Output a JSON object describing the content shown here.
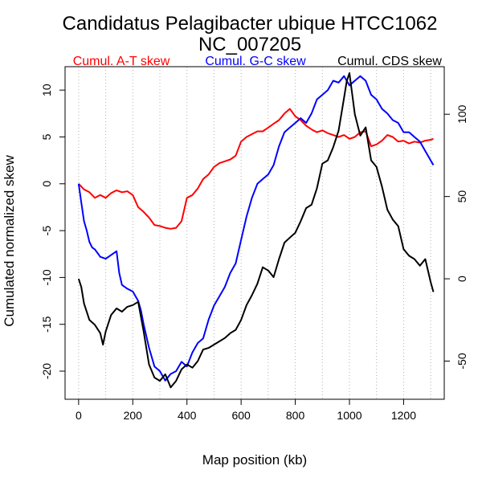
{
  "chart_data": {
    "type": "line",
    "title": "Candidatus Pelagibacter ubique HTCC1062",
    "subtitle": "NC_007205",
    "xlabel": "Map position (kb)",
    "ylabel": "Cumulated normalized skew",
    "xlim": [
      -50,
      1350
    ],
    "ylim": [
      -23,
      12.5
    ],
    "y2lim": [
      -73.2,
      128.9
    ],
    "x_ticks": [
      0,
      200,
      400,
      600,
      800,
      1000,
      1200
    ],
    "y_ticks": [
      10,
      5,
      0,
      -5,
      -10,
      -15,
      -20
    ],
    "y2_ticks": [
      100,
      50,
      0,
      -50
    ],
    "x_gridlines": [
      0,
      100,
      200,
      300,
      400,
      500,
      600,
      700,
      800,
      900,
      1000,
      1100,
      1200,
      1300
    ],
    "grid": "vertical dotted",
    "legend_position": "top",
    "series": [
      {
        "name": "Cumul. A-T skew",
        "color": "#ff0000",
        "axis": "left",
        "points": [
          [
            0,
            0
          ],
          [
            20,
            -0.6
          ],
          [
            40,
            -0.9
          ],
          [
            60,
            -1.5
          ],
          [
            80,
            -1.2
          ],
          [
            100,
            -1.5
          ],
          [
            120,
            -1.0
          ],
          [
            140,
            -0.7
          ],
          [
            160,
            -0.9
          ],
          [
            180,
            -0.8
          ],
          [
            200,
            -1.2
          ],
          [
            220,
            -2.5
          ],
          [
            240,
            -3.0
          ],
          [
            260,
            -3.6
          ],
          [
            280,
            -4.4
          ],
          [
            300,
            -4.5
          ],
          [
            320,
            -4.7
          ],
          [
            340,
            -4.8
          ],
          [
            360,
            -4.7
          ],
          [
            380,
            -4.0
          ],
          [
            400,
            -1.5
          ],
          [
            420,
            -1.2
          ],
          [
            440,
            -0.5
          ],
          [
            460,
            0.5
          ],
          [
            480,
            1.0
          ],
          [
            500,
            1.8
          ],
          [
            520,
            2.2
          ],
          [
            540,
            2.4
          ],
          [
            560,
            2.6
          ],
          [
            580,
            3.0
          ],
          [
            600,
            4.5
          ],
          [
            620,
            5.0
          ],
          [
            640,
            5.3
          ],
          [
            660,
            5.6
          ],
          [
            680,
            5.6
          ],
          [
            700,
            6.0
          ],
          [
            720,
            6.4
          ],
          [
            740,
            6.8
          ],
          [
            760,
            7.5
          ],
          [
            780,
            8.0
          ],
          [
            800,
            7.2
          ],
          [
            820,
            6.8
          ],
          [
            840,
            6.2
          ],
          [
            860,
            5.8
          ],
          [
            880,
            5.5
          ],
          [
            900,
            5.7
          ],
          [
            920,
            5.4
          ],
          [
            940,
            5.2
          ],
          [
            960,
            5.0
          ],
          [
            980,
            5.2
          ],
          [
            1000,
            4.8
          ],
          [
            1020,
            5.0
          ],
          [
            1040,
            5.5
          ],
          [
            1060,
            5.6
          ],
          [
            1080,
            4.0
          ],
          [
            1100,
            4.2
          ],
          [
            1120,
            4.6
          ],
          [
            1140,
            5.2
          ],
          [
            1160,
            5.0
          ],
          [
            1180,
            4.5
          ],
          [
            1200,
            4.6
          ],
          [
            1220,
            4.3
          ],
          [
            1240,
            4.5
          ],
          [
            1260,
            4.4
          ],
          [
            1280,
            4.6
          ],
          [
            1300,
            4.7
          ],
          [
            1310,
            4.8
          ]
        ]
      },
      {
        "name": "Cumul. G-C skew",
        "color": "#0000ff",
        "axis": "left",
        "points": [
          [
            0,
            0
          ],
          [
            10,
            -2.0
          ],
          [
            20,
            -4.0
          ],
          [
            30,
            -5.0
          ],
          [
            40,
            -6.2
          ],
          [
            50,
            -6.8
          ],
          [
            60,
            -7.0
          ],
          [
            70,
            -7.4
          ],
          [
            80,
            -7.8
          ],
          [
            100,
            -8.0
          ],
          [
            120,
            -7.6
          ],
          [
            140,
            -7.2
          ],
          [
            150,
            -9.5
          ],
          [
            160,
            -10.8
          ],
          [
            180,
            -11.2
          ],
          [
            200,
            -11.5
          ],
          [
            220,
            -12.5
          ],
          [
            230,
            -13.5
          ],
          [
            240,
            -15.0
          ],
          [
            260,
            -17.5
          ],
          [
            280,
            -19.5
          ],
          [
            300,
            -20.0
          ],
          [
            320,
            -21.0
          ],
          [
            340,
            -20.3
          ],
          [
            360,
            -20.0
          ],
          [
            380,
            -19.0
          ],
          [
            400,
            -19.5
          ],
          [
            420,
            -18.0
          ],
          [
            440,
            -17.0
          ],
          [
            460,
            -16.5
          ],
          [
            480,
            -14.5
          ],
          [
            500,
            -13.0
          ],
          [
            520,
            -12.0
          ],
          [
            540,
            -11.0
          ],
          [
            560,
            -9.5
          ],
          [
            580,
            -8.5
          ],
          [
            600,
            -6.0
          ],
          [
            620,
            -3.5
          ],
          [
            640,
            -1.5
          ],
          [
            660,
            0.0
          ],
          [
            680,
            0.5
          ],
          [
            700,
            1.0
          ],
          [
            720,
            2.0
          ],
          [
            740,
            4.0
          ],
          [
            760,
            5.5
          ],
          [
            780,
            6.0
          ],
          [
            800,
            6.5
          ],
          [
            820,
            7.0
          ],
          [
            840,
            6.5
          ],
          [
            860,
            7.5
          ],
          [
            880,
            9.0
          ],
          [
            900,
            9.5
          ],
          [
            920,
            10.0
          ],
          [
            940,
            11.0
          ],
          [
            960,
            10.8
          ],
          [
            980,
            11.5
          ],
          [
            1000,
            10.5
          ],
          [
            1020,
            11.0
          ],
          [
            1040,
            11.5
          ],
          [
            1060,
            11.0
          ],
          [
            1080,
            9.5
          ],
          [
            1100,
            9.0
          ],
          [
            1120,
            8.0
          ],
          [
            1140,
            7.5
          ],
          [
            1160,
            6.8
          ],
          [
            1180,
            6.5
          ],
          [
            1200,
            5.5
          ],
          [
            1220,
            5.5
          ],
          [
            1240,
            5.0
          ],
          [
            1260,
            4.5
          ],
          [
            1280,
            3.5
          ],
          [
            1300,
            2.5
          ],
          [
            1310,
            2.0
          ]
        ]
      },
      {
        "name": "Cumul. CDS skew",
        "color": "#000000",
        "axis": "right",
        "points": [
          [
            0,
            0
          ],
          [
            10,
            -5
          ],
          [
            20,
            -15
          ],
          [
            40,
            -25
          ],
          [
            60,
            -28
          ],
          [
            80,
            -33
          ],
          [
            90,
            -40
          ],
          [
            100,
            -32
          ],
          [
            120,
            -22
          ],
          [
            140,
            -18
          ],
          [
            160,
            -20
          ],
          [
            180,
            -17
          ],
          [
            200,
            -16
          ],
          [
            220,
            -14
          ],
          [
            240,
            -32
          ],
          [
            260,
            -52
          ],
          [
            280,
            -60
          ],
          [
            300,
            -62
          ],
          [
            320,
            -58
          ],
          [
            340,
            -66
          ],
          [
            360,
            -62
          ],
          [
            380,
            -55
          ],
          [
            400,
            -52
          ],
          [
            420,
            -54
          ],
          [
            440,
            -50
          ],
          [
            460,
            -43
          ],
          [
            480,
            -42
          ],
          [
            500,
            -40
          ],
          [
            520,
            -38
          ],
          [
            540,
            -36
          ],
          [
            560,
            -33
          ],
          [
            580,
            -31
          ],
          [
            600,
            -25
          ],
          [
            620,
            -16
          ],
          [
            640,
            -10
          ],
          [
            660,
            -3
          ],
          [
            680,
            7
          ],
          [
            700,
            5
          ],
          [
            720,
            1
          ],
          [
            740,
            12
          ],
          [
            760,
            22
          ],
          [
            780,
            25
          ],
          [
            800,
            28
          ],
          [
            820,
            35
          ],
          [
            840,
            43
          ],
          [
            860,
            45
          ],
          [
            880,
            55
          ],
          [
            900,
            70
          ],
          [
            920,
            72
          ],
          [
            940,
            80
          ],
          [
            960,
            90
          ],
          [
            980,
            110
          ],
          [
            990,
            120
          ],
          [
            1000,
            125
          ],
          [
            1020,
            100
          ],
          [
            1040,
            87
          ],
          [
            1060,
            92
          ],
          [
            1080,
            72
          ],
          [
            1100,
            68
          ],
          [
            1120,
            56
          ],
          [
            1140,
            42
          ],
          [
            1160,
            36
          ],
          [
            1180,
            32
          ],
          [
            1200,
            18
          ],
          [
            1220,
            14
          ],
          [
            1240,
            12
          ],
          [
            1260,
            8
          ],
          [
            1280,
            12
          ],
          [
            1300,
            -2
          ],
          [
            1310,
            -8
          ]
        ]
      }
    ]
  }
}
